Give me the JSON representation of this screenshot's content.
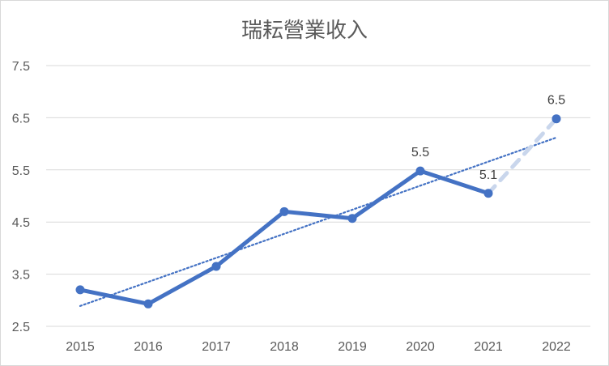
{
  "chart_data": {
    "type": "line",
    "title": "瑞耘營業收入",
    "xlabel": "",
    "ylabel": "",
    "categories": [
      "2015",
      "2016",
      "2017",
      "2018",
      "2019",
      "2020",
      "2021",
      "2022"
    ],
    "yticks": [
      "2.5",
      "3.5",
      "4.5",
      "5.5",
      "6.5",
      "7.5"
    ],
    "ylim": [
      2.5,
      7.5
    ],
    "grid": true,
    "legend": "none",
    "colors": {
      "line": "#4472c4",
      "forecast": "#c9d6ec",
      "grid": "#d9d9d9",
      "trendline": "#4472c4"
    },
    "series": [
      {
        "values": [
          3.2,
          2.93,
          3.65,
          4.7,
          4.57,
          5.48,
          5.05,
          null
        ]
      }
    ],
    "forecast_segment": {
      "from_category": "2021",
      "to_category": "2022",
      "values": [
        5.05,
        6.48
      ],
      "style": "dashed-light"
    },
    "trendline": {
      "type": "linear",
      "style": "dotted",
      "values": [
        2.89,
        6.12
      ]
    },
    "data_labels": [
      {
        "category": "2020",
        "value": 5.48,
        "text": "5.5"
      },
      {
        "category": "2021",
        "value": 5.05,
        "text": "5.1"
      },
      {
        "category": "2022",
        "value": 6.48,
        "text": "6.5"
      }
    ]
  }
}
